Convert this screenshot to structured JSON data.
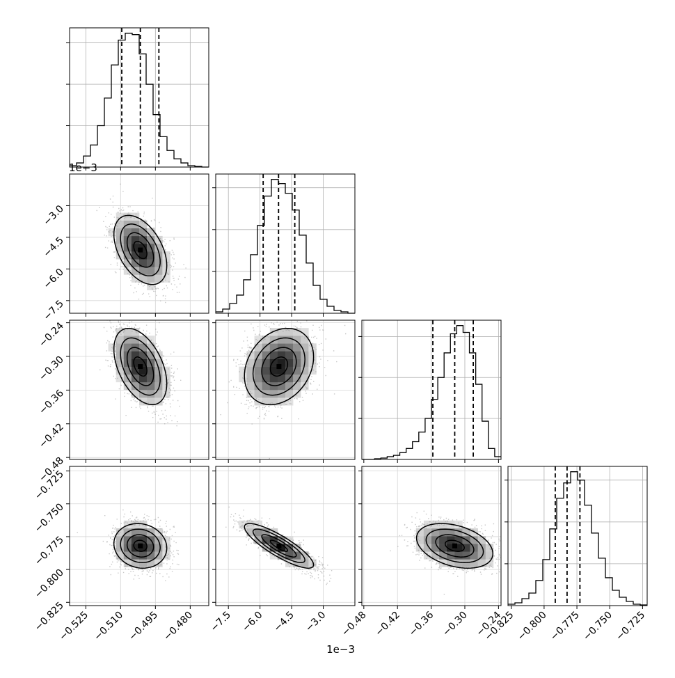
{
  "chart_data": {
    "type": "corner",
    "grid": true,
    "parameters": [
      {
        "index": 0,
        "range": [
          -0.532,
          -0.472
        ],
        "ticks": [
          -0.525,
          -0.51,
          -0.495,
          -0.48
        ],
        "tick_labels": [
          "−0.525",
          "−0.510",
          "−0.495",
          "−0.480"
        ],
        "q16": -0.5095,
        "median": -0.5015,
        "q84": -0.4935,
        "mean": -0.5015,
        "sd": 0.0057
      },
      {
        "index": 1,
        "range": [
          -0.0081,
          -0.0015
        ],
        "ticks": [
          -7.5,
          -6.0,
          -4.5,
          -3.0
        ],
        "tick_labels": [
          "−7.5",
          "−6.0",
          "−4.5",
          "−3.0"
        ],
        "scale_label": "1e−3",
        "q16": -0.00585,
        "median": -0.00512,
        "q84": -0.00435,
        "mean": -0.0051,
        "sd": 0.00082
      },
      {
        "index": 2,
        "range": [
          -0.4835,
          -0.2355
        ],
        "ticks": [
          -0.48,
          -0.42,
          -0.36,
          -0.3,
          -0.24
        ],
        "tick_labels": [
          "−0.48",
          "−0.42",
          "−0.36",
          "−0.30",
          "−0.24"
        ],
        "q16": -0.357,
        "median": -0.318,
        "q84": -0.285,
        "mean": -0.318,
        "sd": 0.034
      },
      {
        "index": 3,
        "range": [
          -0.8275,
          -0.7215
        ],
        "ticks": [
          -0.825,
          -0.8,
          -0.775,
          -0.75,
          -0.725
        ],
        "tick_labels": [
          "−0.825",
          "−0.800",
          "−0.775",
          "−0.750",
          "−0.725"
        ],
        "q16": -0.7915,
        "median": -0.7825,
        "q84": -0.7727,
        "mean": -0.782,
        "sd": 0.0085
      }
    ],
    "histograms": [
      {
        "param": 0,
        "counts": [
          1,
          3,
          8,
          16,
          30,
          50,
          74,
          92,
          97,
          96,
          82,
          60,
          38,
          22,
          12,
          6,
          3,
          1,
          0.5,
          0
        ]
      },
      {
        "param": 1,
        "counts": [
          1,
          3,
          7,
          13,
          24,
          42,
          63,
          84,
          96,
          93,
          86,
          74,
          56,
          36,
          20,
          10,
          5,
          2,
          1,
          0
        ]
      },
      {
        "param": 2,
        "counts": [
          0,
          0,
          0.5,
          1,
          2,
          3,
          5,
          8,
          13,
          20,
          30,
          44,
          60,
          78,
          92,
          98,
          93,
          78,
          55,
          28,
          8,
          2
        ]
      },
      {
        "param": 3,
        "counts": [
          1,
          2,
          5,
          9,
          18,
          33,
          55,
          77,
          88,
          96,
          90,
          72,
          52,
          34,
          20,
          11,
          6,
          3,
          1,
          0.5
        ]
      }
    ],
    "pairs": [
      {
        "x": 0,
        "y": 1,
        "corr": -0.45
      },
      {
        "x": 0,
        "y": 2,
        "corr": -0.45
      },
      {
        "x": 1,
        "y": 2,
        "corr": 0.25
      },
      {
        "x": 0,
        "y": 3,
        "corr": -0.1
      },
      {
        "x": 1,
        "y": 3,
        "corr": -0.85
      },
      {
        "x": 2,
        "y": 3,
        "corr": -0.35
      }
    ]
  }
}
